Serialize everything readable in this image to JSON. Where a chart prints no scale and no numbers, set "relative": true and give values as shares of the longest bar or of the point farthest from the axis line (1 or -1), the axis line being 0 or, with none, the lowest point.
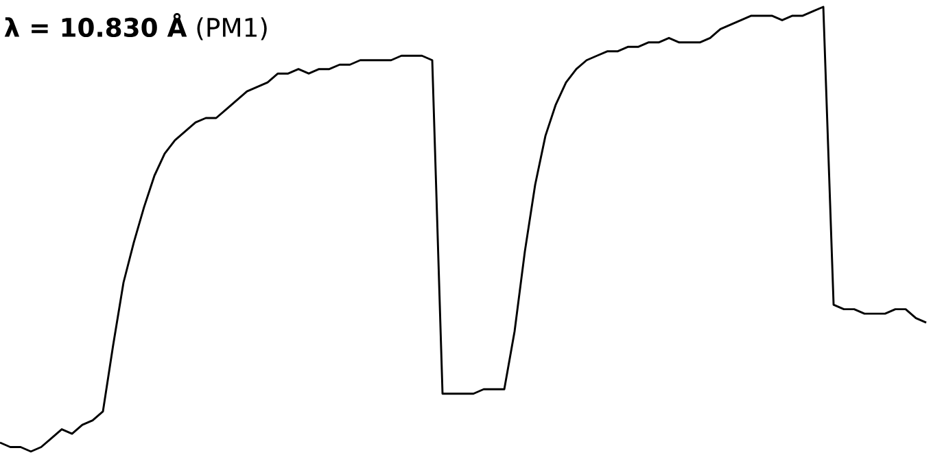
{
  "chart_data": {
    "type": "line",
    "relative": true,
    "title": "**λ = 10.830 Å** (PM1)",
    "categories": [
      null,
      null,
      null,
      null,
      null,
      null,
      null,
      null,
      null,
      null,
      null,
      null,
      null,
      null,
      null,
      null,
      null,
      null,
      null,
      null,
      null,
      null,
      null,
      null,
      null,
      null,
      null,
      null,
      null,
      null,
      null,
      null,
      null,
      null,
      null,
      null,
      null,
      null,
      null,
      null,
      null,
      null,
      null,
      null,
      null,
      null,
      null,
      null,
      null,
      null,
      null,
      null,
      null,
      null,
      null,
      null,
      null,
      null,
      null,
      null,
      null,
      null,
      null,
      null,
      null,
      null,
      null,
      null,
      null,
      null,
      null,
      null,
      null,
      null,
      null,
      null,
      null,
      null,
      null,
      null,
      null,
      null,
      null,
      null,
      null,
      null,
      null,
      null,
      null,
      null,
      null
    ],
    "series": [
      {
        "color": "#000000",
        "values": [
          0.02,
          0.01,
          0.01,
          0,
          0.01,
          0.03,
          0.05,
          0.04,
          0.06,
          0.07,
          0.09,
          0.24,
          0.38,
          0.47,
          0.55,
          0.62,
          0.67,
          0.7,
          0.72,
          0.74,
          0.75,
          0.75,
          0.77,
          0.79,
          0.81,
          0.82,
          0.83,
          0.85,
          0.85,
          0.86,
          0.85,
          0.86,
          0.86,
          0.87,
          0.87,
          0.88,
          0.88,
          0.88,
          0.88,
          0.89,
          0.89,
          0.89,
          0.88,
          0.13,
          0.13,
          0.13,
          0.13,
          0.14,
          0.14,
          0.14,
          0.27,
          0.45,
          0.6,
          0.71,
          0.78,
          0.83,
          0.86,
          0.88,
          0.89,
          0.9,
          0.9,
          0.91,
          0.91,
          0.92,
          0.92,
          0.93,
          0.92,
          0.92,
          0.92,
          0.93,
          0.95,
          0.96,
          0.97,
          0.98,
          0.98,
          0.98,
          0.97,
          0.98,
          0.98,
          0.99,
          1,
          0.33,
          0.32,
          0.32,
          0.31,
          0.31,
          0.31,
          0.32,
          0.32,
          0.3,
          0.29
        ]
      }
    ],
    "line_style": "solid",
    "marker": "none"
  }
}
